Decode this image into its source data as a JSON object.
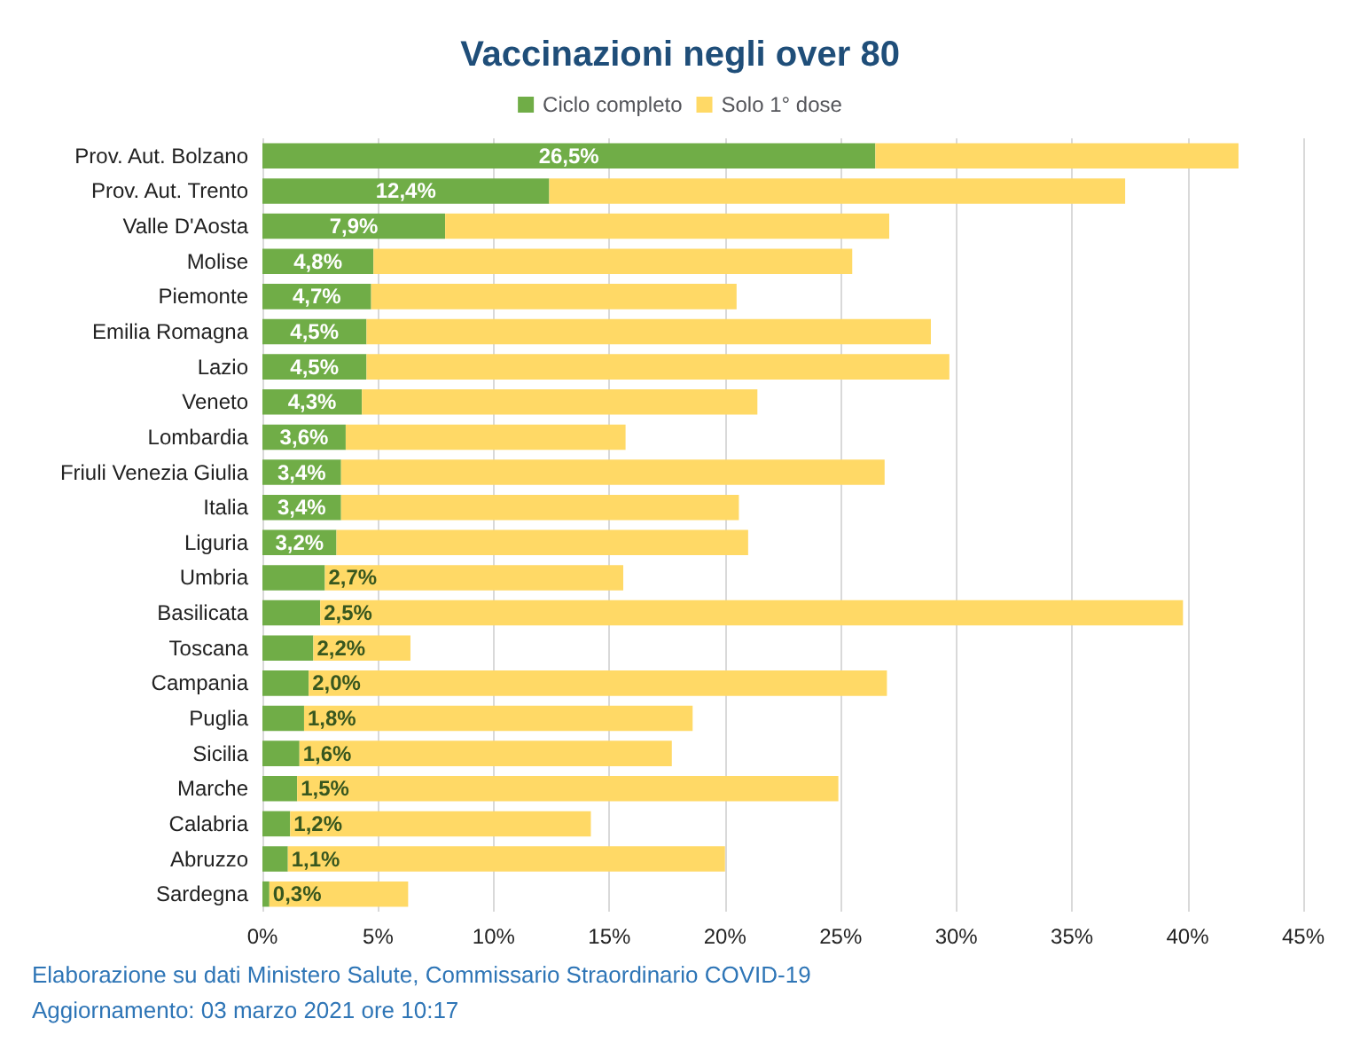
{
  "chart_data": {
    "type": "bar",
    "title": "Vaccinazioni negli over 80",
    "orientation": "horizontal",
    "stacked": true,
    "categories": [
      "Prov. Aut. Bolzano",
      "Prov. Aut. Trento",
      "Valle D'Aosta",
      "Molise",
      "Piemonte",
      "Emilia Romagna",
      "Lazio",
      "Veneto",
      "Lombardia",
      "Friuli Venezia Giulia",
      "Italia",
      "Liguria",
      "Umbria",
      "Basilicata",
      "Toscana",
      "Campania",
      "Puglia",
      "Sicilia",
      "Marche",
      "Calabria",
      "Abruzzo",
      "Sardegna"
    ],
    "series": [
      {
        "name": "Ciclo completo",
        "color": "#70ad47",
        "values": [
          26.5,
          12.4,
          7.9,
          4.8,
          4.7,
          4.5,
          4.5,
          4.3,
          3.6,
          3.4,
          3.4,
          3.2,
          2.7,
          2.5,
          2.2,
          2.0,
          1.8,
          1.6,
          1.5,
          1.2,
          1.1,
          0.3
        ],
        "value_labels": [
          "26,5%",
          "12,4%",
          "7,9%",
          "4,8%",
          "4,7%",
          "4,5%",
          "4,5%",
          "4,3%",
          "3,6%",
          "3,4%",
          "3,4%",
          "3,2%",
          "2,7%",
          "2,5%",
          "2,2%",
          "2,0%",
          "1,8%",
          "1,6%",
          "1,5%",
          "1,2%",
          "1,1%",
          "0,3%"
        ]
      },
      {
        "name": "Solo 1° dose",
        "color": "#ffd966",
        "values": [
          15.7,
          24.9,
          19.2,
          20.7,
          15.8,
          24.4,
          25.2,
          17.1,
          12.1,
          23.5,
          17.2,
          17.8,
          12.9,
          37.3,
          4.2,
          25.0,
          16.8,
          16.1,
          23.4,
          13.0,
          18.9,
          6.0
        ]
      }
    ],
    "xlim": [
      0,
      45
    ],
    "xticks": [
      {
        "value": 0,
        "label": "0%"
      },
      {
        "value": 5,
        "label": "5%"
      },
      {
        "value": 10,
        "label": "10%"
      },
      {
        "value": 15,
        "label": "15%"
      },
      {
        "value": 20,
        "label": "20%"
      },
      {
        "value": 25,
        "label": "25%"
      },
      {
        "value": 30,
        "label": "30%"
      },
      {
        "value": 35,
        "label": "35%"
      },
      {
        "value": 40,
        "label": "40%"
      },
      {
        "value": 45,
        "label": "45%"
      }
    ],
    "grid": "x",
    "legend": "top",
    "annotations": [
      "Elaborazione su dati Ministero Salute, Commissario Straordinario COVID-19",
      "Aggiornamento: 03 marzo 2021 ore 10:17"
    ]
  }
}
